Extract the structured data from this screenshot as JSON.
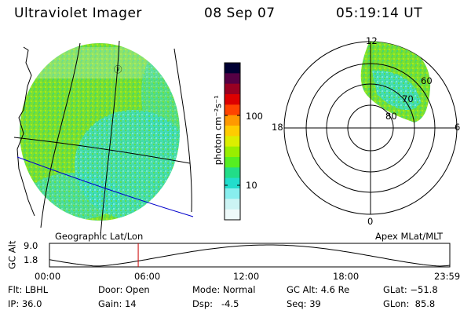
{
  "header": {
    "instrument": "Ultraviolet Imager",
    "date": "08 Sep 07",
    "time": "05:19:14 UT"
  },
  "colorbar": {
    "unit_label": "photon cm⁻²s⁻¹",
    "ticks": [
      "100",
      "10"
    ],
    "colors": [
      "#000033",
      "#550044",
      "#990022",
      "#dd0000",
      "#ff4400",
      "#ff9900",
      "#ffcc00",
      "#ddee00",
      "#99ee00",
      "#55ee22",
      "#22dd88",
      "#22ddcc",
      "#88eeee",
      "#ccf4f4",
      "#eefafa"
    ]
  },
  "geo_panel": {
    "caption": "Geographic Lat/Lon",
    "marker_glyph": "ⓨ"
  },
  "polar_panel": {
    "caption": "Apex MLat/MLT",
    "mlt_labels": {
      "top": "12",
      "left": "18",
      "right": "6",
      "bottom": "0"
    },
    "lat_labels": [
      "60",
      "70",
      "80"
    ]
  },
  "altitude_strip": {
    "axis_title": "GC Alt",
    "y_labels": [
      "9.0",
      "1.8"
    ],
    "x_labels": [
      "00:00",
      "06:00",
      "12:00",
      "18:00",
      "23:59"
    ],
    "current_time_fraction": 0.2217,
    "marker_color": "#cc0000"
  },
  "footer": {
    "filter": "Flt: LBHL",
    "ip": "IP: 36.0",
    "door": "Door: Open",
    "gain": "Gain: 14",
    "mode": "Mode: Normal",
    "dsp": "Dsp:   -4.5",
    "gc_alt": "GC Alt: 4.6 Re",
    "seq": "Seq: 39",
    "glat": "GLat: −51.8",
    "glon": "GLon:  85.8"
  }
}
